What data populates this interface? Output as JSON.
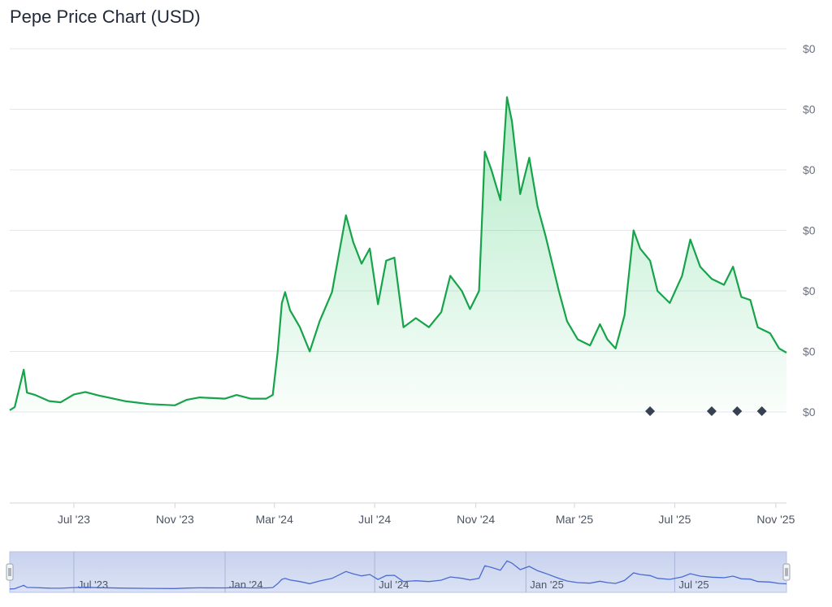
{
  "page": {
    "title": "Pepe Price Chart (USD)"
  },
  "chart_data": {
    "type": "area",
    "title": "Pepe Price Chart (USD)",
    "currency": "USD",
    "line_color": "#16a34a",
    "fill_color": "#22c55e",
    "grid": true,
    "y_axis_side": "right",
    "y_tick_labels": [
      "$0",
      "$0",
      "$0",
      "$0",
      "$0",
      "$0",
      "$0"
    ],
    "y_unit": "price index (relative; axis labels all read $0)",
    "x_tick_labels": [
      "Jul '23",
      "Nov '23",
      "Mar '24",
      "Jul '24",
      "Nov '24",
      "Mar '25",
      "Jul '25",
      "Nov '25"
    ],
    "x_tick_dates": [
      "2023-07-01",
      "2023-11-01",
      "2024-03-01",
      "2024-07-01",
      "2024-11-01",
      "2025-03-01",
      "2025-07-01",
      "2025-11-01"
    ],
    "x_range": [
      "2023-04-14",
      "2025-11-14"
    ],
    "ylim": [
      0,
      6
    ],
    "series": [
      {
        "values": [
          [
            "2023-04-14",
            0.03
          ],
          [
            "2023-04-20",
            0.08
          ],
          [
            "2023-05-01",
            0.7
          ],
          [
            "2023-05-05",
            0.32
          ],
          [
            "2023-05-15",
            0.28
          ],
          [
            "2023-06-01",
            0.18
          ],
          [
            "2023-06-15",
            0.16
          ],
          [
            "2023-07-01",
            0.29
          ],
          [
            "2023-07-15",
            0.33
          ],
          [
            "2023-08-01",
            0.27
          ],
          [
            "2023-09-01",
            0.18
          ],
          [
            "2023-10-01",
            0.13
          ],
          [
            "2023-11-01",
            0.11
          ],
          [
            "2023-11-15",
            0.2
          ],
          [
            "2023-12-01",
            0.24
          ],
          [
            "2024-01-01",
            0.22
          ],
          [
            "2024-01-15",
            0.28
          ],
          [
            "2024-02-01",
            0.22
          ],
          [
            "2024-02-20",
            0.22
          ],
          [
            "2024-02-28",
            0.28
          ],
          [
            "2024-03-05",
            1.0
          ],
          [
            "2024-03-10",
            1.8
          ],
          [
            "2024-03-14",
            1.98
          ],
          [
            "2024-03-20",
            1.68
          ],
          [
            "2024-04-01",
            1.4
          ],
          [
            "2024-04-13",
            1.0
          ],
          [
            "2024-04-25",
            1.5
          ],
          [
            "2024-05-10",
            1.98
          ],
          [
            "2024-05-27",
            3.25
          ],
          [
            "2024-06-05",
            2.8
          ],
          [
            "2024-06-15",
            2.45
          ],
          [
            "2024-06-25",
            2.7
          ],
          [
            "2024-07-05",
            1.78
          ],
          [
            "2024-07-15",
            2.5
          ],
          [
            "2024-07-25",
            2.55
          ],
          [
            "2024-08-05",
            1.4
          ],
          [
            "2024-08-20",
            1.55
          ],
          [
            "2024-09-05",
            1.4
          ],
          [
            "2024-09-20",
            1.65
          ],
          [
            "2024-10-01",
            2.25
          ],
          [
            "2024-10-15",
            2.0
          ],
          [
            "2024-10-25",
            1.7
          ],
          [
            "2024-11-05",
            2.0
          ],
          [
            "2024-11-12",
            4.3
          ],
          [
            "2024-11-20",
            4.0
          ],
          [
            "2024-12-01",
            3.5
          ],
          [
            "2024-12-09",
            5.2
          ],
          [
            "2024-12-15",
            4.8
          ],
          [
            "2024-12-25",
            3.6
          ],
          [
            "2025-01-05",
            4.2
          ],
          [
            "2025-01-15",
            3.4
          ],
          [
            "2025-01-25",
            2.9
          ],
          [
            "2025-02-10",
            2.0
          ],
          [
            "2025-02-20",
            1.5
          ],
          [
            "2025-03-05",
            1.2
          ],
          [
            "2025-03-20",
            1.1
          ],
          [
            "2025-04-01",
            1.45
          ],
          [
            "2025-04-10",
            1.2
          ],
          [
            "2025-04-20",
            1.05
          ],
          [
            "2025-05-01",
            1.6
          ],
          [
            "2025-05-12",
            3.0
          ],
          [
            "2025-05-20",
            2.7
          ],
          [
            "2025-06-01",
            2.5
          ],
          [
            "2025-06-10",
            2.0
          ],
          [
            "2025-06-25",
            1.8
          ],
          [
            "2025-07-10",
            2.25
          ],
          [
            "2025-07-20",
            2.85
          ],
          [
            "2025-08-01",
            2.4
          ],
          [
            "2025-08-15",
            2.2
          ],
          [
            "2025-08-30",
            2.1
          ],
          [
            "2025-09-10",
            2.4
          ],
          [
            "2025-09-20",
            1.9
          ],
          [
            "2025-10-01",
            1.85
          ],
          [
            "2025-10-10",
            1.4
          ],
          [
            "2025-10-25",
            1.3
          ],
          [
            "2025-11-05",
            1.05
          ],
          [
            "2025-11-14",
            0.98
          ]
        ]
      }
    ],
    "event_markers": [
      "2025-06-01",
      "2025-08-15",
      "2025-09-15",
      "2025-10-15"
    ],
    "navigator": {
      "tick_labels": [
        "Jul '23",
        "Jan '24",
        "Jul '24",
        "Jan '25",
        "Jul '25"
      ],
      "tick_dates": [
        "2023-07-01",
        "2024-01-01",
        "2024-07-01",
        "2025-01-01",
        "2025-07-01"
      ],
      "band_color": "#c7d0ec",
      "line_color": "#4a6bd1"
    }
  }
}
